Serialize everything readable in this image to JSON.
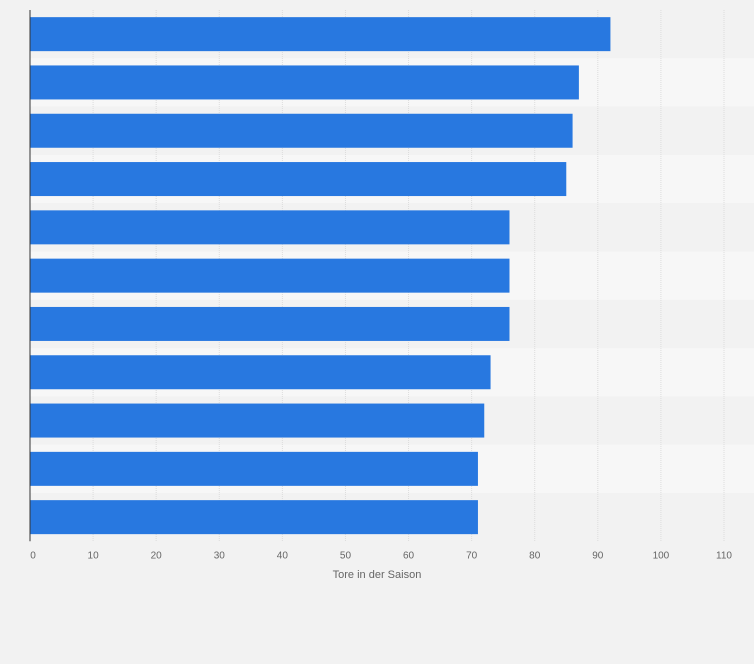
{
  "chart_data": {
    "type": "bar",
    "orientation": "horizontal",
    "categories": [
      "",
      "",
      "",
      "",
      "",
      "",
      "",
      "",
      "",
      "",
      ""
    ],
    "values": [
      92,
      87,
      86,
      85,
      76,
      76,
      76,
      73,
      72,
      71,
      71
    ],
    "title": "",
    "xlabel": "Tore in der Saison",
    "ylabel": "",
    "xlim": [
      0,
      110
    ],
    "xticks": [
      "0",
      "10",
      "20",
      "30",
      "40",
      "50",
      "60",
      "70",
      "80",
      "90",
      "100",
      "110"
    ],
    "grid": true,
    "legend": "none"
  },
  "colors": {
    "bar": "#2878e0",
    "band_dark": "#f2f2f2",
    "band_light": "#f7f7f7",
    "grid": "#dcdcdc",
    "axis": "#333333",
    "text": "#666666"
  }
}
